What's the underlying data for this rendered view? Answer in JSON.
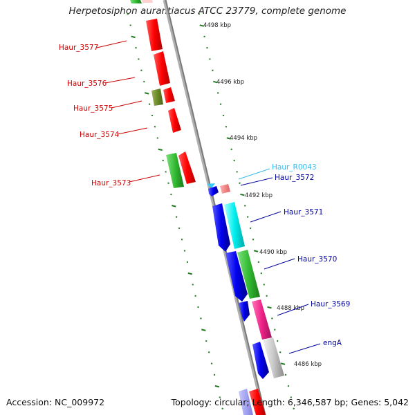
{
  "title": "Herpetosiphon aurantiacus ATCC 23779, complete genome",
  "footer": {
    "accession": "Accession: NC_009972",
    "topology": "Topology: circular; Length: 6,346,587 bp; Genes: 5,042"
  },
  "kbp_labels": [
    "4498 kbp",
    "4496 kbp",
    "4494 kbp",
    "4492 kbp",
    "4490 kbp",
    "4488 kbp",
    "4486 kbp"
  ],
  "left_genes": [
    "Haur_3577",
    "Haur_3576",
    "Haur_3575",
    "Haur_3574",
    "Haur_3573"
  ],
  "right_genes": [
    "Haur_R0043",
    "Haur_3572",
    "Haur_3571",
    "Haur_3570",
    "Haur_3569",
    "engA"
  ],
  "colors": {
    "left_label": "#cc0000",
    "right_label": "#000099",
    "rna_label": "#33bbee",
    "backbone": "#8a8a8a",
    "tick": "#1f7a1f"
  }
}
